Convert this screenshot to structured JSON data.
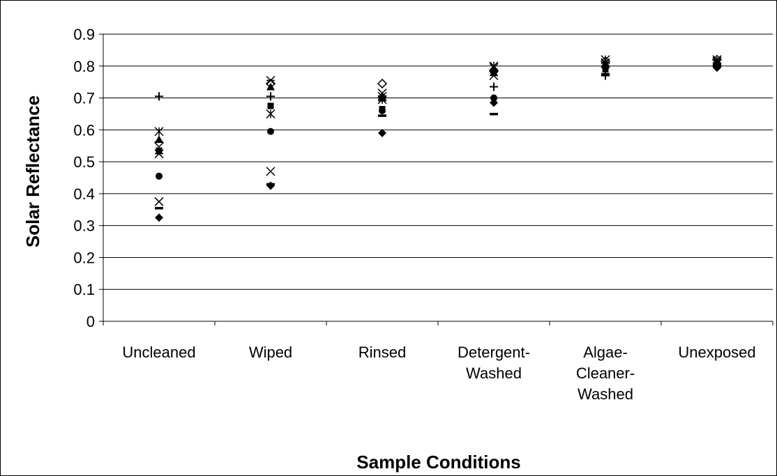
{
  "chart_data": {
    "type": "scatter",
    "xlabel": "Sample Conditions",
    "ylabel": "Solar Reflectance",
    "ylim": [
      0,
      0.9
    ],
    "ytick_step": 0.1,
    "yticks": [
      "0",
      "0.1",
      "0.2",
      "0.3",
      "0.4",
      "0.5",
      "0.6",
      "0.7",
      "0.8",
      "0.9"
    ],
    "grid": true,
    "legend": "none",
    "categories": [
      {
        "lines": [
          "Uncleaned"
        ]
      },
      {
        "lines": [
          "Wiped"
        ]
      },
      {
        "lines": [
          "Rinsed"
        ]
      },
      {
        "lines": [
          "Detergent-",
          "Washed"
        ]
      },
      {
        "lines": [
          "Algae-",
          "Cleaner-",
          "Washed"
        ]
      },
      {
        "lines": [
          "Unexposed"
        ]
      }
    ],
    "series": [
      {
        "marker": "diamond",
        "values": [
          0.325,
          0.425,
          0.59,
          0.685,
          0.795,
          0.795
        ]
      },
      {
        "marker": "square",
        "values": [
          0.535,
          0.675,
          0.665,
          0.78,
          0.79,
          0.8
        ]
      },
      {
        "marker": "triangle",
        "values": [
          0.57,
          0.735,
          0.7,
          0.78,
          0.81,
          0.81
        ]
      },
      {
        "marker": "x",
        "values": [
          0.375,
          0.47,
          0.715,
          0.795,
          0.81,
          0.82
        ]
      },
      {
        "marker": "star",
        "values": [
          0.595,
          0.65,
          0.695,
          0.8,
          0.82,
          0.815
        ]
      },
      {
        "marker": "circle",
        "values": [
          0.455,
          0.595,
          0.66,
          0.7,
          0.8,
          0.8
        ]
      },
      {
        "marker": "plus",
        "values": [
          0.705,
          0.705,
          0.7,
          0.735,
          0.77,
          0.805
        ]
      },
      {
        "marker": "dash",
        "values": [
          0.355,
          0.43,
          0.645,
          0.65,
          0.775,
          0.8
        ]
      },
      {
        "marker": "asterisk",
        "values": [
          0.525,
          0.755,
          0.705,
          0.77,
          0.81,
          0.81
        ]
      },
      {
        "marker": "open-diamond",
        "values": [
          0.56,
          0.745,
          0.745,
          0.785,
          0.815,
          0.82
        ]
      }
    ]
  }
}
